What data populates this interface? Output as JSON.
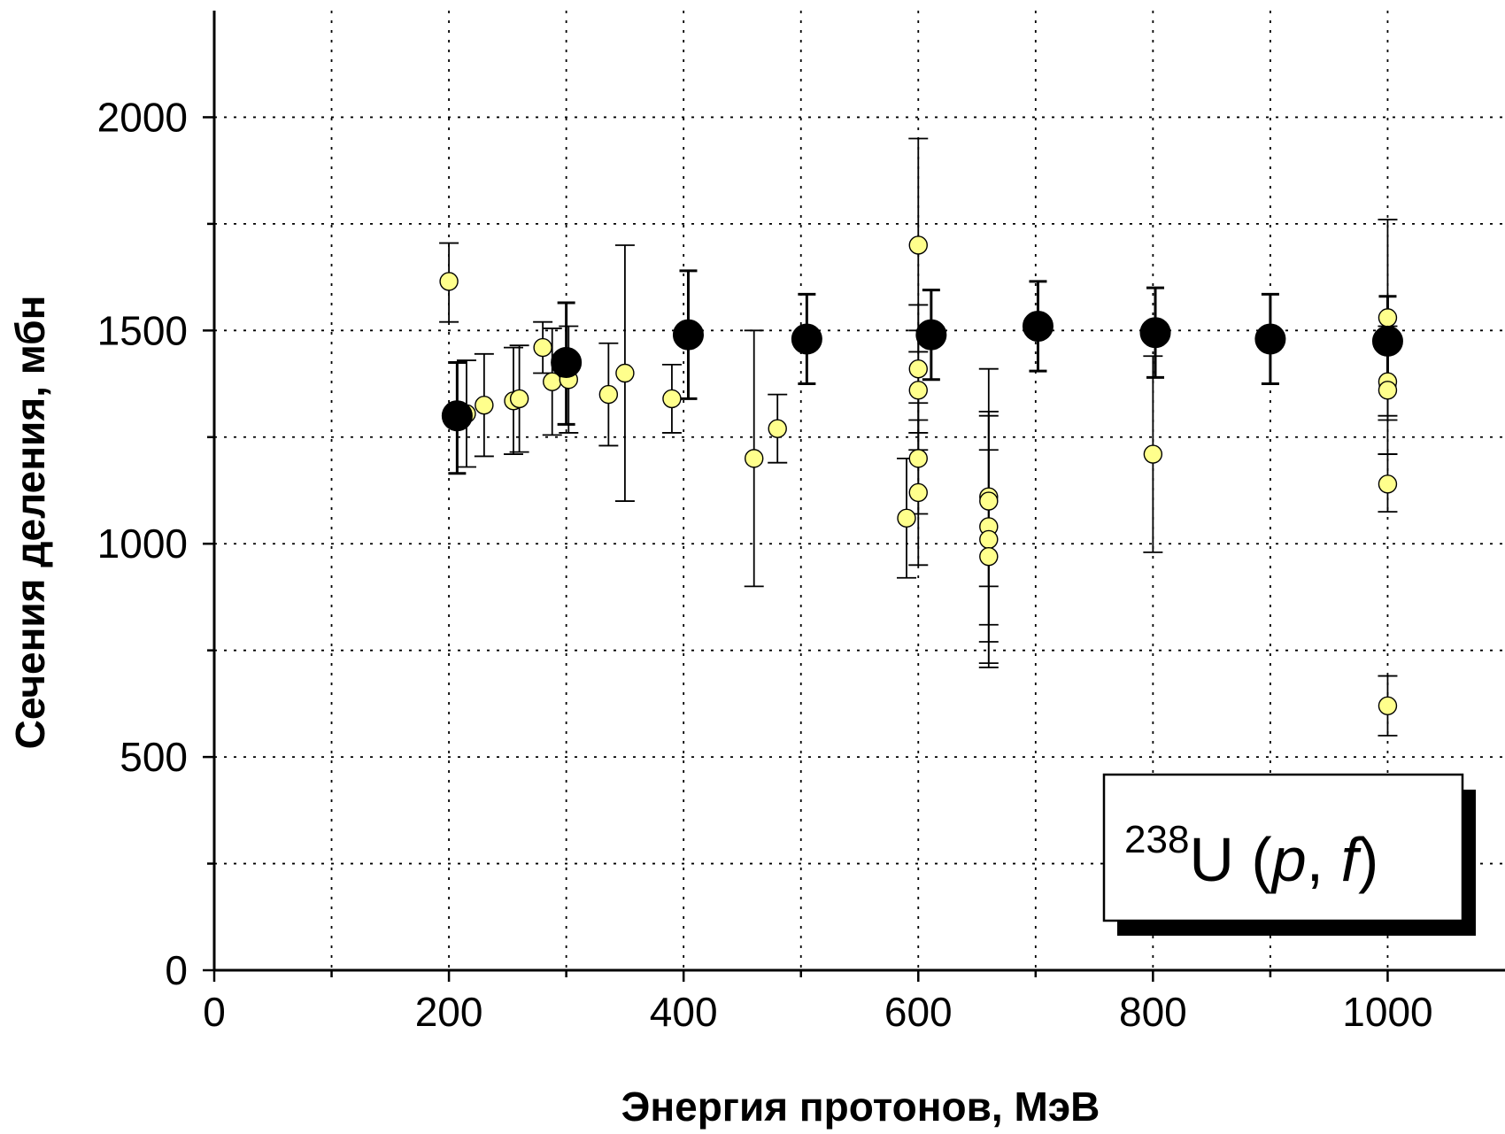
{
  "chart_data": {
    "type": "scatter",
    "title": "",
    "xlabel": "Энергия протонов, МэВ",
    "ylabel": "Сечения деления, мбн",
    "xlim": [
      0,
      1100
    ],
    "ylim": [
      0,
      2250
    ],
    "x_ticks": [
      0,
      200,
      400,
      600,
      800,
      1000
    ],
    "y_ticks": [
      0,
      500,
      1000,
      1500,
      2000
    ],
    "x_gridlines": [
      0,
      100,
      200,
      300,
      400,
      500,
      600,
      700,
      800,
      900,
      1000
    ],
    "y_gridlines": [
      0,
      250,
      500,
      750,
      1000,
      1250,
      1500,
      1750,
      2000
    ],
    "grid": true,
    "annotation": {
      "sup": "238",
      "main": "U (",
      "p": "p",
      "comma": ", ",
      "f": "f",
      "close": ")"
    },
    "series": [
      {
        "color": "#ffff8c",
        "marker": "small-circle",
        "points": [
          {
            "x": 200,
            "y": 1615,
            "lo": 1520,
            "hi": 1705
          },
          {
            "x": 215,
            "y": 1305,
            "lo": 1180,
            "hi": 1430
          },
          {
            "x": 230,
            "y": 1325,
            "lo": 1205,
            "hi": 1445
          },
          {
            "x": 255,
            "y": 1335,
            "lo": 1210,
            "hi": 1460
          },
          {
            "x": 260,
            "y": 1340,
            "lo": 1215,
            "hi": 1465
          },
          {
            "x": 280,
            "y": 1460,
            "lo": 1400,
            "hi": 1520
          },
          {
            "x": 288,
            "y": 1380,
            "lo": 1255,
            "hi": 1505
          },
          {
            "x": 302,
            "y": 1385,
            "lo": 1260,
            "hi": 1510
          },
          {
            "x": 336,
            "y": 1350,
            "lo": 1230,
            "hi": 1470
          },
          {
            "x": 350,
            "y": 1400,
            "lo": 1100,
            "hi": 1700
          },
          {
            "x": 390,
            "y": 1340,
            "lo": 1260,
            "hi": 1420
          },
          {
            "x": 460,
            "y": 1200,
            "lo": 900,
            "hi": 1500
          },
          {
            "x": 480,
            "y": 1270,
            "lo": 1190,
            "hi": 1350
          },
          {
            "x": 590,
            "y": 1060,
            "lo": 920,
            "hi": 1200
          },
          {
            "x": 600,
            "y": 1700,
            "lo": 1450,
            "hi": 1950
          },
          {
            "x": 600,
            "y": 1410,
            "lo": 1260,
            "hi": 1560
          },
          {
            "x": 600,
            "y": 1360,
            "lo": 1220,
            "hi": 1500
          },
          {
            "x": 600,
            "y": 1200,
            "lo": 1070,
            "hi": 1330
          },
          {
            "x": 600,
            "y": 1120,
            "lo": 950,
            "hi": 1290
          },
          {
            "x": 660,
            "y": 1110,
            "lo": 810,
            "hi": 1410
          },
          {
            "x": 660,
            "y": 1100,
            "lo": 900,
            "hi": 1300
          },
          {
            "x": 660,
            "y": 1040,
            "lo": 770,
            "hi": 1310
          },
          {
            "x": 660,
            "y": 1010,
            "lo": 710,
            "hi": 1310
          },
          {
            "x": 660,
            "y": 970,
            "lo": 720,
            "hi": 1220
          },
          {
            "x": 800,
            "y": 1210,
            "lo": 980,
            "hi": 1440
          },
          {
            "x": 1000,
            "y": 1530,
            "lo": 1300,
            "hi": 1760
          },
          {
            "x": 1000,
            "y": 1380,
            "lo": 1290,
            "hi": 1470
          },
          {
            "x": 1000,
            "y": 1360,
            "lo": 1210,
            "hi": 1510
          },
          {
            "x": 1000,
            "y": 1140,
            "lo": 1075,
            "hi": 1210
          },
          {
            "x": 1000,
            "y": 620,
            "lo": 550,
            "hi": 690
          }
        ]
      },
      {
        "color": "#000000",
        "marker": "large-circle",
        "points": [
          {
            "x": 207,
            "y": 1300,
            "lo": 1165,
            "hi": 1425
          },
          {
            "x": 300,
            "y": 1425,
            "lo": 1280,
            "hi": 1565
          },
          {
            "x": 404,
            "y": 1490,
            "lo": 1340,
            "hi": 1640
          },
          {
            "x": 505,
            "y": 1480,
            "lo": 1375,
            "hi": 1585
          },
          {
            "x": 611,
            "y": 1490,
            "lo": 1385,
            "hi": 1595
          },
          {
            "x": 702,
            "y": 1510,
            "lo": 1405,
            "hi": 1615
          },
          {
            "x": 802,
            "y": 1495,
            "lo": 1390,
            "hi": 1600
          },
          {
            "x": 900,
            "y": 1480,
            "lo": 1375,
            "hi": 1585
          },
          {
            "x": 1000,
            "y": 1475,
            "lo": 1370,
            "hi": 1580
          }
        ]
      }
    ]
  }
}
